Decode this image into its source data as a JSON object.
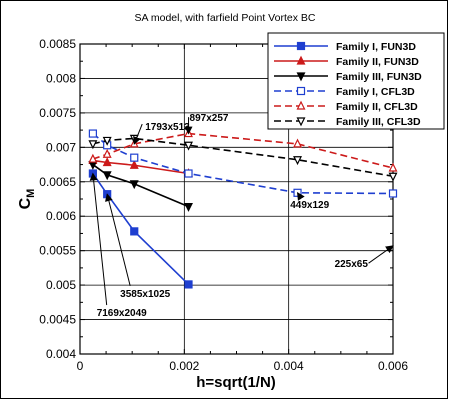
{
  "chart_data": {
    "type": "line",
    "title": "SA model, with farfield Point Vortex BC",
    "xlabel": "h=sqrt(1/N)",
    "ylabel_main": "C",
    "ylabel_sub": "M",
    "xlim": [
      0,
      0.006
    ],
    "ylim": [
      0.004,
      0.0085
    ],
    "x_ticks": [
      0,
      0.002,
      0.004,
      0.006
    ],
    "x_tick_labels": [
      "0",
      "0.002",
      "0.004",
      "0.006"
    ],
    "y_ticks": [
      0.004,
      0.0045,
      0.005,
      0.0055,
      0.006,
      0.0065,
      0.007,
      0.0075,
      0.008,
      0.0085
    ],
    "y_tick_labels": [
      "0.004",
      "0.0045",
      "0.005",
      "0.0055",
      "0.006",
      "0.0065",
      "0.007",
      "0.0075",
      "0.008",
      "0.0085"
    ],
    "grid": true,
    "legend_position": "top-right",
    "series": [
      {
        "name": "Family I, FUN3D",
        "color": "#1f3fd0",
        "dash": "solid",
        "marker": "square-filled",
        "x": [
          0.000247,
          0.000521,
          0.00104,
          0.00208
        ],
        "y": [
          0.00662,
          0.00632,
          0.00578,
          0.00501
        ]
      },
      {
        "name": "Family II, FUN3D",
        "color": "#cc1a1a",
        "dash": "solid",
        "marker": "triangle-up-filled",
        "x": [
          0.000247,
          0.000521,
          0.00104,
          0.00208
        ],
        "y": [
          0.00681,
          0.00678,
          0.00674,
          0.00662
        ]
      },
      {
        "name": "Family III, FUN3D",
        "color": "#000000",
        "dash": "solid",
        "marker": "triangle-down-filled",
        "x": [
          0.000247,
          0.000521,
          0.00104,
          0.00208
        ],
        "y": [
          0.00675,
          0.0066,
          0.00647,
          0.00614
        ]
      },
      {
        "name": "Family I, CFL3D",
        "color": "#1f3fd0",
        "dash": "dashed",
        "marker": "square-open",
        "x": [
          0.000247,
          0.000521,
          0.00104,
          0.00208,
          0.00417,
          0.006
        ],
        "y": [
          0.0072,
          0.00703,
          0.00685,
          0.00662,
          0.00634,
          0.00633
        ]
      },
      {
        "name": "Family II, CFL3D",
        "color": "#cc1a1a",
        "dash": "dashed",
        "marker": "triangle-up-open",
        "x": [
          0.000247,
          0.000521,
          0.00104,
          0.00208,
          0.00417,
          0.006
        ],
        "y": [
          0.00683,
          0.0069,
          0.00705,
          0.0072,
          0.00705,
          0.0067
        ]
      },
      {
        "name": "Family III, CFL3D",
        "color": "#000000",
        "dash": "dashed",
        "marker": "triangle-down-open",
        "x": [
          0.000247,
          0.000521,
          0.00104,
          0.00208,
          0.00417,
          0.006
        ],
        "y": [
          0.00705,
          0.0071,
          0.00713,
          0.00703,
          0.00682,
          0.00658
        ]
      }
    ],
    "annotations": [
      {
        "text": "1793x513",
        "point_x": 0.00104,
        "point_y": 0.00705,
        "label_x": 0.00125,
        "label_y": 0.00725
      },
      {
        "text": "897x257",
        "point_x": 0.00208,
        "point_y": 0.0072,
        "label_x": 0.0021,
        "label_y": 0.00738
      },
      {
        "text": "449x129",
        "point_x": 0.00417,
        "point_y": 0.00634,
        "label_x": 0.00403,
        "label_y": 0.00612
      },
      {
        "text": "225x65",
        "point_x": 0.006,
        "point_y": 0.00557,
        "label_x": 0.00488,
        "label_y": 0.00526
      },
      {
        "text": "3585x1025",
        "point_x": 0.000521,
        "point_y": 0.00632,
        "label_x": 0.00077,
        "label_y": 0.00483
      },
      {
        "text": "7169x2049",
        "point_x": 0.000247,
        "point_y": 0.00662,
        "label_x": 0.00032,
        "label_y": 0.00455
      }
    ]
  }
}
